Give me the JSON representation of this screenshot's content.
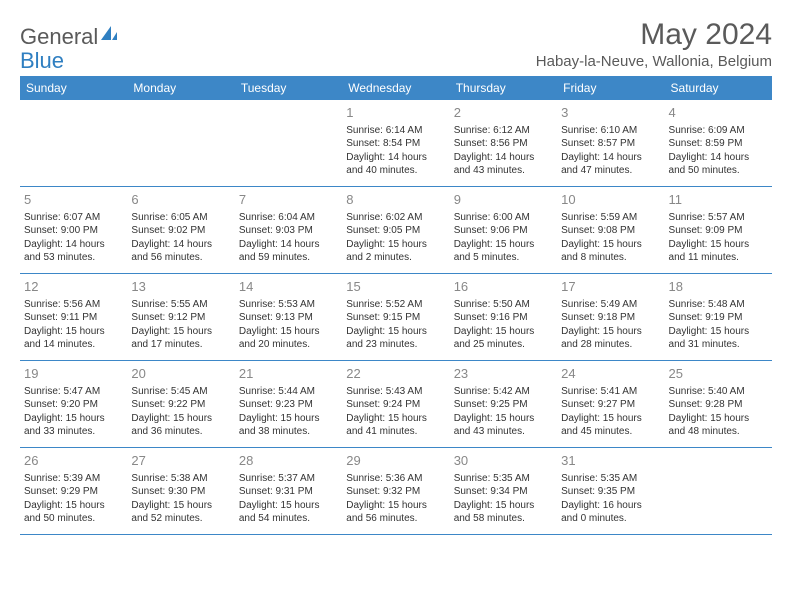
{
  "logo": {
    "text1": "General",
    "text2": "Blue"
  },
  "title": "May 2024",
  "location": "Habay-la-Neuve, Wallonia, Belgium",
  "colors": {
    "header_bg": "#3d87c7",
    "header_text": "#ffffff",
    "body_text": "#333333",
    "daynum_text": "#888888",
    "title_text": "#5a5a5a",
    "logo_blue": "#2f7fc1",
    "border": "#3d87c7"
  },
  "weekdays": [
    "Sunday",
    "Monday",
    "Tuesday",
    "Wednesday",
    "Thursday",
    "Friday",
    "Saturday"
  ],
  "weeks": [
    [
      {
        "num": "",
        "sunrise": "",
        "sunset": "",
        "daylight": ""
      },
      {
        "num": "",
        "sunrise": "",
        "sunset": "",
        "daylight": ""
      },
      {
        "num": "",
        "sunrise": "",
        "sunset": "",
        "daylight": ""
      },
      {
        "num": "1",
        "sunrise": "Sunrise: 6:14 AM",
        "sunset": "Sunset: 8:54 PM",
        "daylight": "Daylight: 14 hours and 40 minutes."
      },
      {
        "num": "2",
        "sunrise": "Sunrise: 6:12 AM",
        "sunset": "Sunset: 8:56 PM",
        "daylight": "Daylight: 14 hours and 43 minutes."
      },
      {
        "num": "3",
        "sunrise": "Sunrise: 6:10 AM",
        "sunset": "Sunset: 8:57 PM",
        "daylight": "Daylight: 14 hours and 47 minutes."
      },
      {
        "num": "4",
        "sunrise": "Sunrise: 6:09 AM",
        "sunset": "Sunset: 8:59 PM",
        "daylight": "Daylight: 14 hours and 50 minutes."
      }
    ],
    [
      {
        "num": "5",
        "sunrise": "Sunrise: 6:07 AM",
        "sunset": "Sunset: 9:00 PM",
        "daylight": "Daylight: 14 hours and 53 minutes."
      },
      {
        "num": "6",
        "sunrise": "Sunrise: 6:05 AM",
        "sunset": "Sunset: 9:02 PM",
        "daylight": "Daylight: 14 hours and 56 minutes."
      },
      {
        "num": "7",
        "sunrise": "Sunrise: 6:04 AM",
        "sunset": "Sunset: 9:03 PM",
        "daylight": "Daylight: 14 hours and 59 minutes."
      },
      {
        "num": "8",
        "sunrise": "Sunrise: 6:02 AM",
        "sunset": "Sunset: 9:05 PM",
        "daylight": "Daylight: 15 hours and 2 minutes."
      },
      {
        "num": "9",
        "sunrise": "Sunrise: 6:00 AM",
        "sunset": "Sunset: 9:06 PM",
        "daylight": "Daylight: 15 hours and 5 minutes."
      },
      {
        "num": "10",
        "sunrise": "Sunrise: 5:59 AM",
        "sunset": "Sunset: 9:08 PM",
        "daylight": "Daylight: 15 hours and 8 minutes."
      },
      {
        "num": "11",
        "sunrise": "Sunrise: 5:57 AM",
        "sunset": "Sunset: 9:09 PM",
        "daylight": "Daylight: 15 hours and 11 minutes."
      }
    ],
    [
      {
        "num": "12",
        "sunrise": "Sunrise: 5:56 AM",
        "sunset": "Sunset: 9:11 PM",
        "daylight": "Daylight: 15 hours and 14 minutes."
      },
      {
        "num": "13",
        "sunrise": "Sunrise: 5:55 AM",
        "sunset": "Sunset: 9:12 PM",
        "daylight": "Daylight: 15 hours and 17 minutes."
      },
      {
        "num": "14",
        "sunrise": "Sunrise: 5:53 AM",
        "sunset": "Sunset: 9:13 PM",
        "daylight": "Daylight: 15 hours and 20 minutes."
      },
      {
        "num": "15",
        "sunrise": "Sunrise: 5:52 AM",
        "sunset": "Sunset: 9:15 PM",
        "daylight": "Daylight: 15 hours and 23 minutes."
      },
      {
        "num": "16",
        "sunrise": "Sunrise: 5:50 AM",
        "sunset": "Sunset: 9:16 PM",
        "daylight": "Daylight: 15 hours and 25 minutes."
      },
      {
        "num": "17",
        "sunrise": "Sunrise: 5:49 AM",
        "sunset": "Sunset: 9:18 PM",
        "daylight": "Daylight: 15 hours and 28 minutes."
      },
      {
        "num": "18",
        "sunrise": "Sunrise: 5:48 AM",
        "sunset": "Sunset: 9:19 PM",
        "daylight": "Daylight: 15 hours and 31 minutes."
      }
    ],
    [
      {
        "num": "19",
        "sunrise": "Sunrise: 5:47 AM",
        "sunset": "Sunset: 9:20 PM",
        "daylight": "Daylight: 15 hours and 33 minutes."
      },
      {
        "num": "20",
        "sunrise": "Sunrise: 5:45 AM",
        "sunset": "Sunset: 9:22 PM",
        "daylight": "Daylight: 15 hours and 36 minutes."
      },
      {
        "num": "21",
        "sunrise": "Sunrise: 5:44 AM",
        "sunset": "Sunset: 9:23 PM",
        "daylight": "Daylight: 15 hours and 38 minutes."
      },
      {
        "num": "22",
        "sunrise": "Sunrise: 5:43 AM",
        "sunset": "Sunset: 9:24 PM",
        "daylight": "Daylight: 15 hours and 41 minutes."
      },
      {
        "num": "23",
        "sunrise": "Sunrise: 5:42 AM",
        "sunset": "Sunset: 9:25 PM",
        "daylight": "Daylight: 15 hours and 43 minutes."
      },
      {
        "num": "24",
        "sunrise": "Sunrise: 5:41 AM",
        "sunset": "Sunset: 9:27 PM",
        "daylight": "Daylight: 15 hours and 45 minutes."
      },
      {
        "num": "25",
        "sunrise": "Sunrise: 5:40 AM",
        "sunset": "Sunset: 9:28 PM",
        "daylight": "Daylight: 15 hours and 48 minutes."
      }
    ],
    [
      {
        "num": "26",
        "sunrise": "Sunrise: 5:39 AM",
        "sunset": "Sunset: 9:29 PM",
        "daylight": "Daylight: 15 hours and 50 minutes."
      },
      {
        "num": "27",
        "sunrise": "Sunrise: 5:38 AM",
        "sunset": "Sunset: 9:30 PM",
        "daylight": "Daylight: 15 hours and 52 minutes."
      },
      {
        "num": "28",
        "sunrise": "Sunrise: 5:37 AM",
        "sunset": "Sunset: 9:31 PM",
        "daylight": "Daylight: 15 hours and 54 minutes."
      },
      {
        "num": "29",
        "sunrise": "Sunrise: 5:36 AM",
        "sunset": "Sunset: 9:32 PM",
        "daylight": "Daylight: 15 hours and 56 minutes."
      },
      {
        "num": "30",
        "sunrise": "Sunrise: 5:35 AM",
        "sunset": "Sunset: 9:34 PM",
        "daylight": "Daylight: 15 hours and 58 minutes."
      },
      {
        "num": "31",
        "sunrise": "Sunrise: 5:35 AM",
        "sunset": "Sunset: 9:35 PM",
        "daylight": "Daylight: 16 hours and 0 minutes."
      },
      {
        "num": "",
        "sunrise": "",
        "sunset": "",
        "daylight": ""
      }
    ]
  ]
}
